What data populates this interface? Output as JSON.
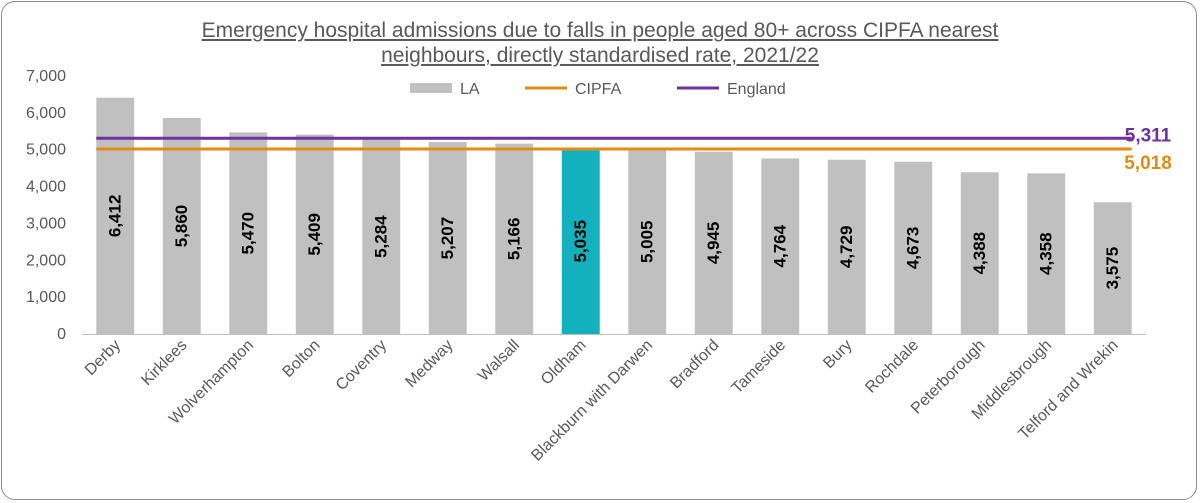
{
  "chart_data": {
    "type": "bar",
    "title_line1": "Emergency hospital admissions due to falls in people aged 80+ across CIPFA nearest",
    "title_line2": "neighbours, directly standardised rate, 2021/22",
    "categories": [
      "Derby",
      "Kirklees",
      "Wolverhampton",
      "Bolton",
      "Coventry",
      "Medway",
      "Walsall",
      "Oldham",
      "Blackburn with Darwen",
      "Bradford",
      "Tameside",
      "Bury",
      "Rochdale",
      "Peterborough",
      "Middlesbrough",
      "Telford and Wrekin"
    ],
    "values": [
      6412,
      5860,
      5470,
      5409,
      5284,
      5207,
      5166,
      5035,
      5005,
      4945,
      4764,
      4729,
      4673,
      4388,
      4358,
      3575
    ],
    "value_labels": [
      "6,412",
      "5,860",
      "5,470",
      "5,409",
      "5,284",
      "5,207",
      "5,166",
      "5,035",
      "5,005",
      "4,945",
      "4,764",
      "4,729",
      "4,673",
      "4,388",
      "4,358",
      "3,575"
    ],
    "highlight": "Oldham",
    "ylim": [
      0,
      7000
    ],
    "yticks": [
      0,
      1000,
      2000,
      3000,
      4000,
      5000,
      6000,
      7000
    ],
    "ytick_labels": [
      "0",
      "1,000",
      "2,000",
      "3,000",
      "4,000",
      "5,000",
      "6,000",
      "7,000"
    ],
    "legend": {
      "placement": "top-center",
      "items": [
        "LA",
        "CIPFA",
        "England"
      ]
    },
    "reference_lines": [
      {
        "name": "England",
        "value": 5311,
        "label": "5,311",
        "color": "#7030a0"
      },
      {
        "name": "CIPFA",
        "value": 5018,
        "label": "5,018",
        "color": "#e38b13"
      }
    ],
    "colors": {
      "bar": "#c0c0c0",
      "highlight": "#12b1bd",
      "axis": "#bfbfbf",
      "text": "#595959"
    },
    "grid": false
  }
}
